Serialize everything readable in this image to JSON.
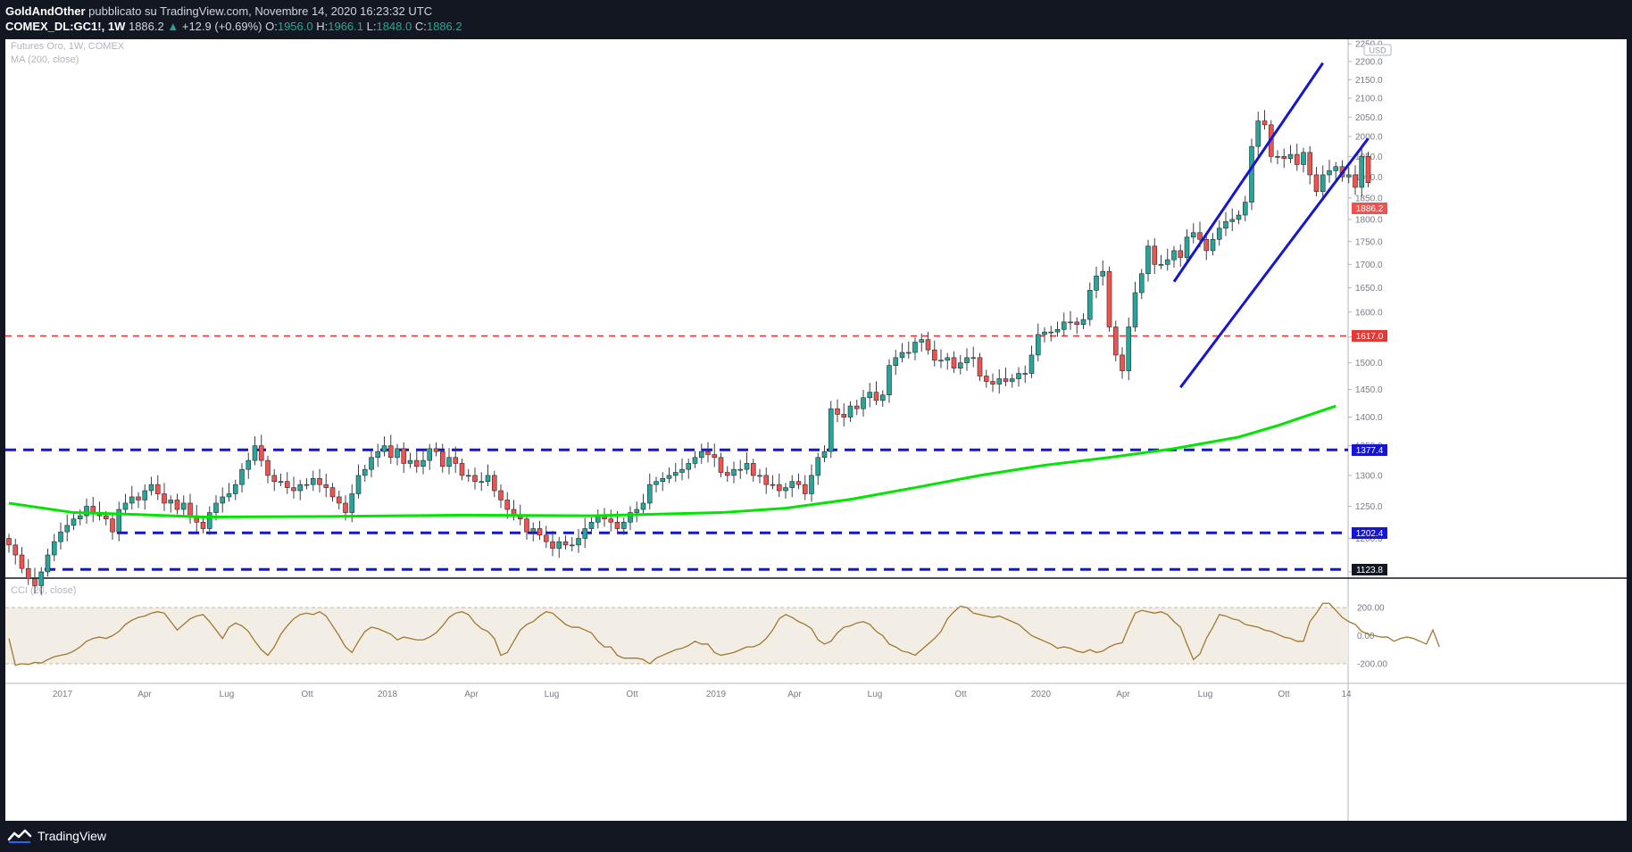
{
  "header": {
    "author": "GoldAndOther",
    "published_text": "pubblicato su TradingView.com, Novembre 14, 2020 16:23:32 UTC",
    "symbol": "COMEX_DL:GC1!, 1W",
    "last": "1886.2",
    "change": "+12.9 (+0.69%)",
    "o_label": "O:",
    "o": "1956.0",
    "h_label": "H:",
    "h": "1966.1",
    "l_label": "L:",
    "l": "1848.0",
    "c_label": "C:",
    "c": "1886.2"
  },
  "legend": {
    "title": "Futures Oro, 1W, COMEX",
    "ma": "MA (200, close)",
    "cci": "CCI (20, close)"
  },
  "price_axis": {
    "currency": "USD",
    "ticks": [
      "2250.0",
      "2200.0",
      "2150.0",
      "2100.0",
      "2050.0",
      "2000.0",
      "1950.0",
      "1900.0",
      "1850.0",
      "1800.0",
      "1750.0",
      "1700.0",
      "1650.0",
      "1600.0",
      "1550.0",
      "1500.0",
      "1450.0",
      "1400.0",
      "1350.0",
      "1300.0",
      "1250.0",
      "1200.0",
      "1150.0"
    ]
  },
  "cci_axis": {
    "ticks": [
      "200.00",
      "0.00",
      "-200.00"
    ]
  },
  "time_axis": {
    "labels": [
      "2017",
      "Apr",
      "Lug",
      "Ott",
      "2018",
      "Apr",
      "Lug",
      "Ott",
      "2019",
      "Apr",
      "Lug",
      "Ott",
      "2020",
      "Apr",
      "Lug",
      "Ott",
      "14"
    ]
  },
  "level_labels": {
    "current": "1886.2",
    "red": "1617.0",
    "l1": "1377.4",
    "l2": "1202.4",
    "l3": "1123.8"
  },
  "colors": {
    "bull": "#26a69a",
    "bear": "#ef5350",
    "ma": "#00e600",
    "channel": "#1515d6",
    "support": "#1515d6",
    "resistance": "#e53935",
    "cci": "#a07830"
  },
  "footer": {
    "brand": "TradingView",
    "brand_icon": "tradingview-logo-icon"
  },
  "chart_data": [
    {
      "type": "candlestick",
      "title": "Futures Oro, 1W, COMEX",
      "ylabel": "USD",
      "ylim": [
        1100,
        2260
      ],
      "log_scale": true,
      "x_labels": [
        "2017",
        "Apr",
        "Lug",
        "Ott",
        "2018",
        "Apr",
        "Lug",
        "Ott",
        "2019",
        "Apr",
        "Lug",
        "Ott",
        "2020",
        "Apr",
        "Lug",
        "Ott",
        "14"
      ],
      "x_range": [
        "2016-11-28",
        "2020-11-13"
      ],
      "weekly_close_approx": [
        1190,
        1175,
        1155,
        1140,
        1130,
        1150,
        1175,
        1195,
        1210,
        1220,
        1230,
        1235,
        1250,
        1240,
        1235,
        1230,
        1210,
        1245,
        1255,
        1265,
        1260,
        1275,
        1285,
        1270,
        1255,
        1260,
        1245,
        1255,
        1235,
        1225,
        1215,
        1240,
        1255,
        1265,
        1270,
        1285,
        1310,
        1325,
        1350,
        1325,
        1300,
        1290,
        1290,
        1280,
        1275,
        1285,
        1285,
        1295,
        1285,
        1280,
        1265,
        1255,
        1240,
        1270,
        1300,
        1310,
        1330,
        1340,
        1350,
        1330,
        1345,
        1320,
        1325,
        1315,
        1325,
        1345,
        1340,
        1315,
        1330,
        1320,
        1300,
        1300,
        1290,
        1290,
        1300,
        1275,
        1260,
        1245,
        1235,
        1230,
        1210,
        1215,
        1205,
        1195,
        1185,
        1195,
        1190,
        1190,
        1200,
        1215,
        1225,
        1235,
        1230,
        1225,
        1215,
        1225,
        1240,
        1245,
        1255,
        1285,
        1290,
        1295,
        1300,
        1305,
        1310,
        1320,
        1330,
        1340,
        1335,
        1330,
        1305,
        1300,
        1310,
        1310,
        1320,
        1300,
        1300,
        1285,
        1285,
        1275,
        1280,
        1290,
        1285,
        1270,
        1300,
        1330,
        1340,
        1415,
        1405,
        1400,
        1420,
        1415,
        1435,
        1445,
        1430,
        1440,
        1495,
        1510,
        1520,
        1520,
        1540,
        1545,
        1525,
        1505,
        1505,
        1510,
        1490,
        1500,
        1510,
        1510,
        1475,
        1465,
        1460,
        1470,
        1465,
        1470,
        1480,
        1480,
        1515,
        1555,
        1560,
        1560,
        1565,
        1580,
        1580,
        1575,
        1585,
        1645,
        1675,
        1685,
        1570,
        1515,
        1485,
        1570,
        1640,
        1680,
        1740,
        1700,
        1700,
        1710,
        1730,
        1715,
        1760,
        1770,
        1755,
        1730,
        1755,
        1780,
        1795,
        1800,
        1810,
        1840,
        1975,
        2040,
        2030,
        1950,
        1950,
        1945,
        1955,
        1930,
        1960,
        1905,
        1865,
        1905,
        1915,
        1925,
        1900,
        1905,
        1875,
        1950,
        1886.2
      ],
      "overlays": [
        {
          "name": "MA (200, close)",
          "points_approx": [
            [
              0,
              1255
            ],
            [
              10,
              1240
            ],
            [
              20,
              1237
            ],
            [
              30,
              1233
            ],
            [
              50,
              1234
            ],
            [
              70,
              1236
            ],
            [
              90,
              1235
            ],
            [
              110,
              1240
            ],
            [
              120,
              1247
            ],
            [
              130,
              1261
            ],
            [
              140,
              1280
            ],
            [
              150,
              1300
            ],
            [
              160,
              1317
            ],
            [
              170,
              1330
            ],
            [
              180,
              1345
            ],
            [
              190,
              1365
            ],
            [
              196,
              1385
            ],
            [
              205,
              1420
            ]
          ]
        }
      ],
      "horizontal_levels": [
        1617.0,
        1377.4,
        1202.4,
        1123.8
      ],
      "channel_lines": [
        [
          [
            180,
            1663
          ],
          [
            203,
            2196
          ]
        ],
        [
          [
            181,
            1454
          ],
          [
            210,
            1995
          ]
        ]
      ]
    },
    {
      "type": "line",
      "title": "CCI (20, close)",
      "ylim": [
        -250,
        260
      ],
      "reference_lines": [
        200,
        0,
        -200
      ],
      "values_approx": [
        -20,
        -210,
        -200,
        -205,
        -190,
        -195,
        -170,
        -150,
        -140,
        -130,
        -110,
        -80,
        -40,
        -20,
        -10,
        -20,
        0,
        30,
        80,
        110,
        130,
        140,
        160,
        170,
        160,
        100,
        40,
        80,
        120,
        140,
        150,
        100,
        40,
        -20,
        60,
        90,
        70,
        30,
        -40,
        -100,
        -140,
        -80,
        10,
        70,
        120,
        150,
        160,
        150,
        170,
        140,
        70,
        0,
        -80,
        -120,
        -40,
        30,
        60,
        50,
        30,
        10,
        -30,
        -10,
        -20,
        -30,
        -30,
        -10,
        20,
        70,
        130,
        160,
        170,
        150,
        90,
        50,
        30,
        -20,
        -140,
        -120,
        -40,
        40,
        80,
        100,
        140,
        170,
        160,
        120,
        80,
        60,
        60,
        40,
        20,
        -40,
        -80,
        -80,
        -140,
        -160,
        -160,
        -160,
        -170,
        -200,
        -160,
        -140,
        -120,
        -100,
        -90,
        -70,
        -40,
        -60,
        -60,
        -120,
        -140,
        -130,
        -120,
        -100,
        -80,
        -80,
        -60,
        -20,
        40,
        120,
        150,
        130,
        100,
        80,
        50,
        -30,
        -60,
        -40,
        20,
        60,
        70,
        90,
        100,
        80,
        30,
        0,
        -60,
        -80,
        -110,
        -120,
        -140,
        -100,
        -60,
        -20,
        30,
        120,
        170,
        210,
        200,
        160,
        150,
        140,
        130,
        140,
        120,
        100,
        80,
        40,
        0,
        -20,
        -40,
        -60,
        -90,
        -80,
        -90,
        -110,
        -120,
        -100,
        -120,
        -110,
        -80,
        -60,
        -50,
        60,
        160,
        180,
        170,
        160,
        170,
        150,
        100,
        60,
        -60,
        -170,
        -130,
        -20,
        60,
        150,
        140,
        120,
        110,
        80,
        70,
        60,
        40,
        30,
        10,
        -10,
        -20,
        -40,
        -40,
        100,
        160,
        230,
        230,
        180,
        130,
        100,
        80,
        30,
        10,
        0,
        -10,
        -10,
        -40,
        -20,
        -10,
        -20,
        -40,
        -60,
        40,
        -80
      ]
    }
  ]
}
